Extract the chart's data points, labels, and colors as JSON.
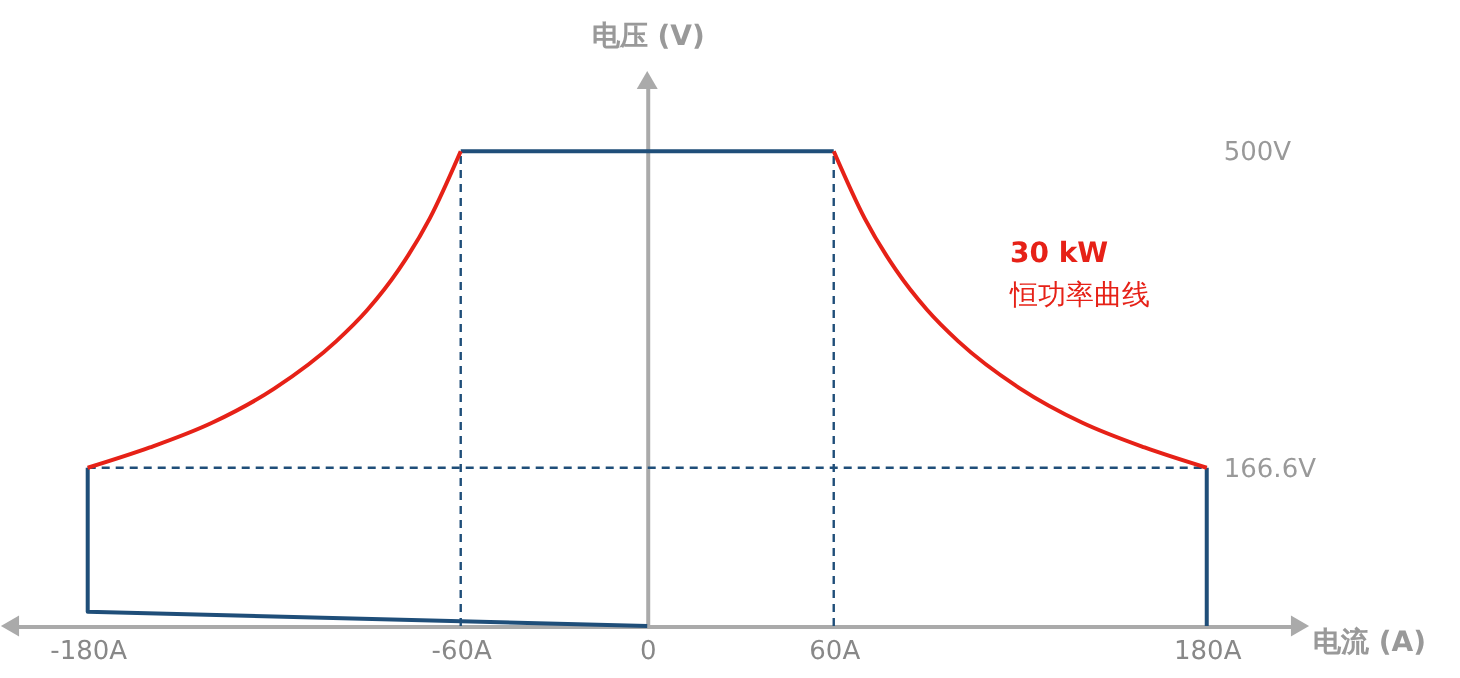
{
  "chart_data": {
    "type": "line",
    "xlabel": "电流 (A)",
    "ylabel": "电压 (V)",
    "xlim": [
      -205,
      210
    ],
    "ylim": [
      0,
      575
    ],
    "xticks": [
      {
        "value": -180,
        "label": "-180A"
      },
      {
        "value": -60,
        "label": "-60A"
      },
      0,
      {
        "value": 60,
        "label": "60A"
      },
      {
        "value": 180,
        "label": "180A"
      }
    ],
    "yticks": [
      {
        "value": 166.6,
        "label": "166.6V"
      },
      {
        "value": 500,
        "label": "500V"
      }
    ],
    "series": [
      {
        "color": "#1f4e79",
        "line_style": "solid",
        "x": [
          -180,
          -180,
          0
        ],
        "values": [
          166.6,
          15,
          0
        ]
      },
      {
        "color": "#1f4e79",
        "line_style": "solid",
        "x": [
          180,
          180
        ],
        "values": [
          0,
          166.6
        ]
      },
      {
        "color": "#1f4e79",
        "line_style": "solid",
        "x": [
          -60,
          60
        ],
        "values": [
          500,
          500
        ]
      },
      {
        "color": "#1f4e79",
        "line_style": "dashed",
        "x": [
          -180,
          180
        ],
        "values": [
          166.6,
          166.6
        ]
      },
      {
        "color": "#1f4e79",
        "line_style": "dashed",
        "x": [
          -60,
          -60
        ],
        "values": [
          0,
          500
        ]
      },
      {
        "color": "#1f4e79",
        "line_style": "dashed",
        "x": [
          60,
          60
        ],
        "values": [
          0,
          500
        ]
      },
      {
        "color": "#e62117",
        "line_style": "solid",
        "x": [
          60,
          70,
          80,
          90,
          100,
          120,
          140,
          160,
          180
        ],
        "values": [
          500,
          429,
          375,
          333,
          300,
          250,
          214,
          188,
          166.6
        ]
      },
      {
        "color": "#e62117",
        "line_style": "solid",
        "x": [
          -180,
          -160,
          -140,
          -120,
          -100,
          -90,
          -80,
          -70,
          -60
        ],
        "values": [
          166.6,
          188,
          214,
          250,
          300,
          333,
          375,
          429,
          500
        ]
      }
    ],
    "annotations": [
      "30 kW",
      "恒功率曲线"
    ]
  }
}
